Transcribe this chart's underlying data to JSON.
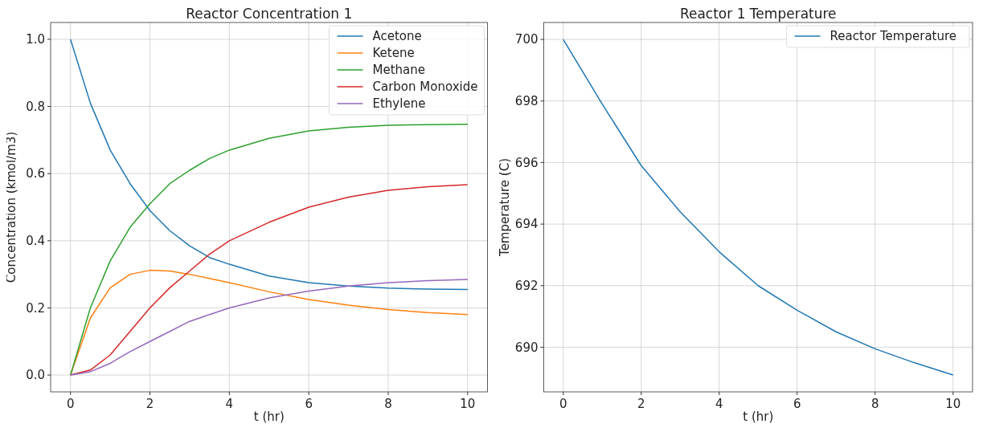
{
  "chart_data": [
    {
      "type": "line",
      "title": "Reactor Concentration 1",
      "xlabel": "t (hr)",
      "ylabel": "Concentration (kmol/m3)",
      "x": [
        0,
        0.5,
        1,
        1.5,
        2,
        2.5,
        3,
        3.5,
        4,
        5,
        6,
        7,
        8,
        9,
        10
      ],
      "series": [
        {
          "name": "Acetone",
          "color": "#1f77b4",
          "values": [
            1.0,
            0.81,
            0.67,
            0.57,
            0.49,
            0.43,
            0.385,
            0.35,
            0.33,
            0.295,
            0.275,
            0.265,
            0.259,
            0.256,
            0.255
          ]
        },
        {
          "name": "Ketene",
          "color": "#ff7f0e",
          "values": [
            0,
            0.17,
            0.26,
            0.3,
            0.312,
            0.31,
            0.3,
            0.288,
            0.275,
            0.248,
            0.225,
            0.208,
            0.195,
            0.186,
            0.18
          ]
        },
        {
          "name": "Methane",
          "color": "#2ca02c",
          "values": [
            0,
            0.2,
            0.34,
            0.44,
            0.51,
            0.57,
            0.61,
            0.645,
            0.67,
            0.705,
            0.727,
            0.738,
            0.744,
            0.746,
            0.747
          ]
        },
        {
          "name": "Carbon Monoxide",
          "color": "#d62728",
          "values": [
            0,
            0.015,
            0.06,
            0.13,
            0.2,
            0.26,
            0.31,
            0.36,
            0.4,
            0.455,
            0.5,
            0.53,
            0.55,
            0.561,
            0.567
          ]
        },
        {
          "name": "Ethylene",
          "color": "#9467bd",
          "values": [
            0,
            0.01,
            0.035,
            0.07,
            0.1,
            0.13,
            0.16,
            0.18,
            0.2,
            0.23,
            0.25,
            0.265,
            0.275,
            0.281,
            0.285
          ]
        }
      ],
      "xlim": [
        -0.5,
        10.5
      ],
      "xticks": [
        0,
        2,
        4,
        6,
        8,
        10
      ],
      "ylim": [
        -0.05,
        1.05
      ],
      "yticks": [
        {
          "value": 0,
          "label": "0.0"
        },
        {
          "value": 0.2,
          "label": "0.2"
        },
        {
          "value": 0.4,
          "label": "0.4"
        },
        {
          "value": 0.6,
          "label": "0.6"
        },
        {
          "value": 0.8,
          "label": "0.8"
        },
        {
          "value": 1,
          "label": "1.0"
        }
      ],
      "grid": true,
      "legend": "top right"
    },
    {
      "type": "line",
      "title": "Reactor 1 Temperature",
      "xlabel": "t (hr)",
      "ylabel": "Temperature (C)",
      "x": [
        0,
        1,
        2,
        3,
        4,
        5,
        6,
        7,
        8,
        9,
        10
      ],
      "series": [
        {
          "name": "Reactor Temperature",
          "color": "#1f77b4",
          "values": [
            700,
            697.9,
            695.9,
            694.4,
            693.1,
            692.0,
            691.2,
            690.5,
            689.95,
            689.5,
            689.1
          ]
        }
      ],
      "xlim": [
        -0.5,
        10.5
      ],
      "xticks": [
        0,
        2,
        4,
        6,
        8,
        10
      ],
      "ylim": [
        688.55,
        700.55
      ],
      "yticks": [
        690,
        692,
        694,
        696,
        698,
        700
      ],
      "grid": true,
      "legend": "top right"
    }
  ]
}
